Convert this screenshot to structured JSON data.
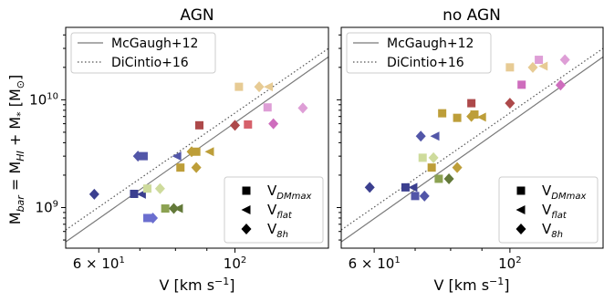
{
  "figure": {
    "ylabel_parts": [
      "M",
      "bar",
      " = M",
      "HI",
      " + M",
      "*",
      " [M",
      "⊙",
      "]"
    ],
    "xlabel_parts": [
      "V [km s",
      "−1",
      "]"
    ]
  },
  "legend_lines": [
    {
      "label": "McGaugh+12",
      "style": "solid",
      "color": "#7a7a7a"
    },
    {
      "label": "DiCintio+16",
      "style": "dotted",
      "color": "#555555"
    }
  ],
  "legend_markers": [
    {
      "marker": "square",
      "label_main": "V",
      "label_sub": "DMmax"
    },
    {
      "marker": "triangle-left",
      "label_main": "V",
      "label_sub": "flat"
    },
    {
      "marker": "diamond",
      "label_main": "V",
      "label_sub": "8h"
    }
  ],
  "x_ticks": [
    {
      "value": 60,
      "main": "6 × 10",
      "exp": "1"
    },
    {
      "value": 100,
      "main": "10",
      "exp": "2"
    }
  ],
  "y_ticks": [
    {
      "value": 1000000000,
      "main": "10",
      "exp": "9"
    },
    {
      "value": 10000000000,
      "main": "10",
      "exp": "10"
    }
  ],
  "chart_data": [
    {
      "type": "scatter",
      "title": "AGN",
      "xscale": "log",
      "yscale": "log",
      "xlim": [
        53,
        142
      ],
      "ylim": [
        420000000,
        47000000000
      ],
      "relations": [
        {
          "name": "McGaugh+12",
          "x": [
            53,
            142
          ],
          "y": [
            480000000,
            25000000000
          ]
        },
        {
          "name": "DiCintio+16",
          "x": [
            53,
            142
          ],
          "y": [
            620000000,
            30000000000
          ]
        }
      ],
      "points": [
        {
          "x": 59,
          "y": 1330000000,
          "m": "diamond",
          "c": "#3b3f8f"
        },
        {
          "x": 68.5,
          "y": 1340000000,
          "m": "square",
          "c": "#3b3f8f"
        },
        {
          "x": 70.5,
          "y": 1330000000,
          "m": "triangle-left",
          "c": "#3b3f8f"
        },
        {
          "x": 69.5,
          "y": 3000000000,
          "m": "diamond",
          "c": "#5256a8"
        },
        {
          "x": 71,
          "y": 3000000000,
          "m": "square",
          "c": "#5256a8"
        },
        {
          "x": 80.5,
          "y": 3000000000,
          "m": "triangle-left",
          "c": "#5256a8"
        },
        {
          "x": 72,
          "y": 800000000,
          "m": "square",
          "c": "#6b6ecf"
        },
        {
          "x": 73.5,
          "y": 800000000,
          "m": "diamond",
          "c": "#6b6ecf"
        },
        {
          "x": 72,
          "y": 1500000000,
          "m": "square",
          "c": "#cedb9c"
        },
        {
          "x": 75.5,
          "y": 1500000000,
          "m": "diamond",
          "c": "#cedb9c"
        },
        {
          "x": 77,
          "y": 980000000,
          "m": "square",
          "c": "#8ca252"
        },
        {
          "x": 79.5,
          "y": 980000000,
          "m": "diamond",
          "c": "#637939"
        },
        {
          "x": 81,
          "y": 980000000,
          "m": "triangle-left",
          "c": "#637939"
        },
        {
          "x": 81.5,
          "y": 2350000000,
          "m": "square",
          "c": "#bd9e39"
        },
        {
          "x": 85,
          "y": 3300000000,
          "m": "diamond",
          "c": "#bd9e39"
        },
        {
          "x": 86.5,
          "y": 3300000000,
          "m": "square",
          "c": "#bd9e39"
        },
        {
          "x": 91,
          "y": 3300000000,
          "m": "triangle-left",
          "c": "#bd9e39"
        },
        {
          "x": 86.5,
          "y": 2350000000,
          "m": "diamond",
          "c": "#bd9e39"
        },
        {
          "x": 87.5,
          "y": 5800000000,
          "m": "square",
          "c": "#ad494a"
        },
        {
          "x": 100,
          "y": 5800000000,
          "m": "diamond",
          "c": "#ad494a"
        },
        {
          "x": 105,
          "y": 5900000000,
          "m": "square",
          "c": "#d6616b"
        },
        {
          "x": 101.5,
          "y": 13200000000,
          "m": "square",
          "c": "#e7cb94"
        },
        {
          "x": 109.5,
          "y": 13200000000,
          "m": "diamond",
          "c": "#e7cb94"
        },
        {
          "x": 113.5,
          "y": 13200000000,
          "m": "triangle-left",
          "c": "#e7cb94"
        },
        {
          "x": 113,
          "y": 8500000000,
          "m": "square",
          "c": "#de9ed6"
        },
        {
          "x": 115.5,
          "y": 6000000000,
          "m": "diamond",
          "c": "#ce6dbd"
        },
        {
          "x": 129,
          "y": 8400000000,
          "m": "diamond",
          "c": "#de9ed6"
        }
      ]
    },
    {
      "type": "scatter",
      "title": "no AGN",
      "xscale": "log",
      "yscale": "log",
      "xlim": [
        53,
        142
      ],
      "ylim": [
        420000000,
        47000000000
      ],
      "relations": [
        {
          "name": "McGaugh+12",
          "x": [
            53,
            142
          ],
          "y": [
            480000000,
            25000000000
          ]
        },
        {
          "name": "DiCintio+16",
          "x": [
            53,
            142
          ],
          "y": [
            620000000,
            30000000000
          ]
        }
      ],
      "points": [
        {
          "x": 59,
          "y": 1540000000,
          "m": "diamond",
          "c": "#3b3f8f"
        },
        {
          "x": 67.5,
          "y": 1540000000,
          "m": "square",
          "c": "#3b3f8f"
        },
        {
          "x": 69.5,
          "y": 1540000000,
          "m": "triangle-left",
          "c": "#3b3f8f"
        },
        {
          "x": 70,
          "y": 1280000000,
          "m": "square",
          "c": "#5256a8"
        },
        {
          "x": 72.5,
          "y": 1280000000,
          "m": "diamond",
          "c": "#5256a8"
        },
        {
          "x": 71.5,
          "y": 4600000000,
          "m": "diamond",
          "c": "#5256a8"
        },
        {
          "x": 75.5,
          "y": 4600000000,
          "m": "triangle-left",
          "c": "#5256a8"
        },
        {
          "x": 72,
          "y": 2900000000,
          "m": "square",
          "c": "#cedb9c"
        },
        {
          "x": 75,
          "y": 2900000000,
          "m": "diamond",
          "c": "#cedb9c"
        },
        {
          "x": 74.5,
          "y": 2350000000,
          "m": "square",
          "c": "#bd9e39"
        },
        {
          "x": 76.5,
          "y": 1850000000,
          "m": "square",
          "c": "#8ca252"
        },
        {
          "x": 79.5,
          "y": 1850000000,
          "m": "diamond",
          "c": "#637939"
        },
        {
          "x": 82,
          "y": 2350000000,
          "m": "diamond",
          "c": "#bd9e39"
        },
        {
          "x": 77.5,
          "y": 7500000000,
          "m": "square",
          "c": "#bd9e39"
        },
        {
          "x": 82,
          "y": 6800000000,
          "m": "square",
          "c": "#bd9e39"
        },
        {
          "x": 86.5,
          "y": 7000000000,
          "m": "diamond",
          "c": "#bd9e39"
        },
        {
          "x": 87.5,
          "y": 7300000000,
          "m": "square",
          "c": "#bd9e39"
        },
        {
          "x": 90,
          "y": 6900000000,
          "m": "triangle-left",
          "c": "#bd9e39"
        },
        {
          "x": 86.5,
          "y": 9300000000,
          "m": "square",
          "c": "#ad494a"
        },
        {
          "x": 100,
          "y": 9300000000,
          "m": "diamond",
          "c": "#ad494a"
        },
        {
          "x": 100,
          "y": 20000000000,
          "m": "square",
          "c": "#e7cb94"
        },
        {
          "x": 109,
          "y": 20000000000,
          "m": "diamond",
          "c": "#e7cb94"
        },
        {
          "x": 113.5,
          "y": 20500000000,
          "m": "triangle-left",
          "c": "#e7cb94"
        },
        {
          "x": 104.5,
          "y": 13800000000,
          "m": "square",
          "c": "#ce6dbd"
        },
        {
          "x": 111.5,
          "y": 23500000000,
          "m": "square",
          "c": "#de9ed6"
        },
        {
          "x": 123,
          "y": 23500000000,
          "m": "diamond",
          "c": "#de9ed6"
        },
        {
          "x": 121,
          "y": 13700000000,
          "m": "diamond",
          "c": "#ce6dbd"
        }
      ]
    }
  ]
}
